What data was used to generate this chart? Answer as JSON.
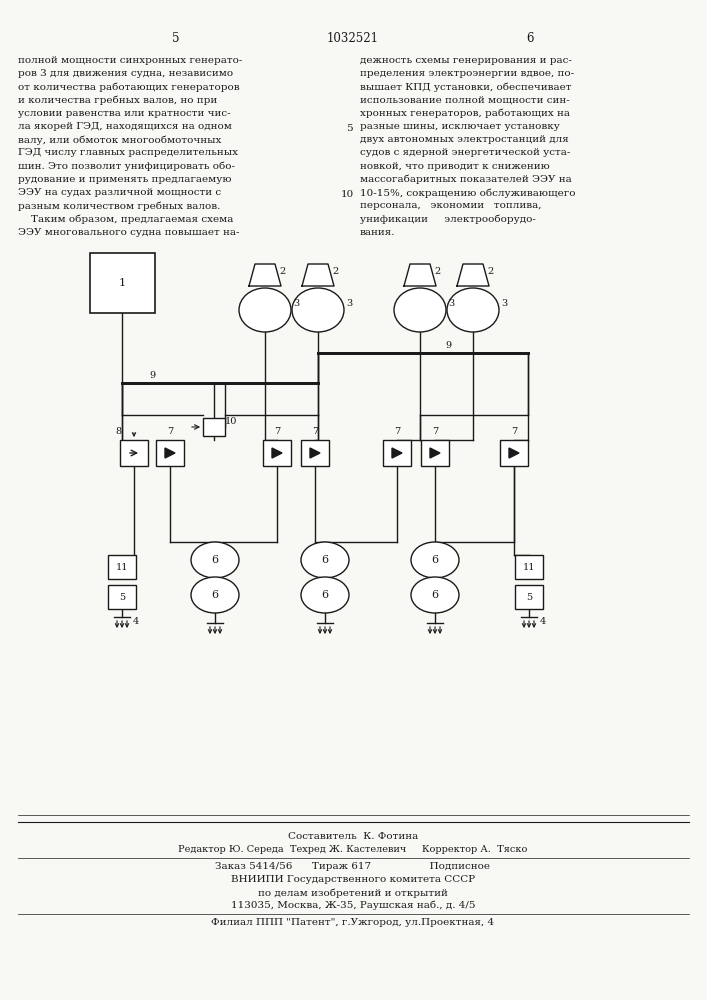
{
  "bg_color": "#f8f8f4",
  "line_color": "#1a1a1a",
  "title_text": "1032521",
  "page_left": "5",
  "page_right": "6",
  "left_text": "полной мощности синхронных генерато-\nров 3 для движения судна, независимо\nот количества работающих генераторов\nи количества гребных валов, но при\nусловии равенства или кратности чис-\nла якорей ГЭД, находящихся на одном\nвалу, или обмоток многообмоточных\nГЭД числу главных распределительных\nшин. Это позволит унифицировать обо-\nрудование и применять предлагаемую\nЭЭУ на судах различной мощности с\nразным количеством гребных валов.\n    Таким образом, предлагаемая схема\nЭЭУ многовального судна повышает на-",
  "right_text": "дежность схемы генерирования и рас-\nпределения электроэнергии вдвое, по-\nвышает КПД установки, обеспечивает\nиспользование полной мощности син-\nхронных генераторов, работающих на\nразные шины, исключает установку\nдвух автономных электростанций для\nсудов с ядерной энергетической уста-\nновкой, что приводит к снижению\nмассогабаритных показателей ЭЭУ на\n10-15%, сокращению обслуживающего\nперсонала,   экономии   топлива,\nунификации     электрооборудо-\nвания.",
  "bottom_text1": "Составитель  К. Фотина",
  "bottom_text2": "Редактор Ю. Середа  Техред Ж. Кастелевич     Корректор А.  Тяско",
  "bottom_text3": "Заказ 5414/56      Тираж 617                  Подписное",
  "bottom_text4": "ВНИИПИ Государственного комитета СССР",
  "bottom_text5": "по делам изобретений и открытий",
  "bottom_text6": "113035, Москва, Ж-35, Раушская наб., д. 4/5",
  "bottom_text7": "Филиал ППП \"Патент\", г.Ужгород, ул.Проектная, 4"
}
